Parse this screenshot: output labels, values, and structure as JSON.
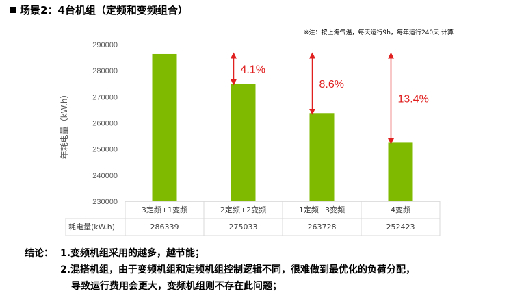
{
  "title": "场景2：4台机组（定频和变频组合）",
  "note": "※注：按上海气温，每天运行9h，每年运行240天 计算",
  "chart_data": {
    "type": "bar",
    "ylabel": "年耗电量（kW.h）",
    "ylim": [
      230000,
      290000
    ],
    "yticks": [
      "230000",
      "240000",
      "250000",
      "260000",
      "270000",
      "280000",
      "290000"
    ],
    "categories": [
      "3定频+1变频",
      "2定频+2变频",
      "1定频+3变频",
      "4变频"
    ],
    "values": [
      286339,
      275033,
      263728,
      252423
    ],
    "table_row_label": "耗电量(kW.h)",
    "table_values": [
      "286339",
      "275033",
      "263728",
      "252423"
    ],
    "annotations": [
      "",
      "4.1%",
      "8.6%",
      "13.4%"
    ],
    "bar_color": "#7fba00",
    "annotation_color": "#e01f1f",
    "grid": false,
    "legend": "none"
  },
  "conclusion": {
    "label": "结论：",
    "line1": "1.变频机组采用的越多，越节能；",
    "line2": "2.混搭机组，由于变频机组和定频机组控制逻辑不同，很难做到最优化的负荷分配，",
    "line3": "导致运行费用会更大，变频机组则不存在此问题；"
  }
}
